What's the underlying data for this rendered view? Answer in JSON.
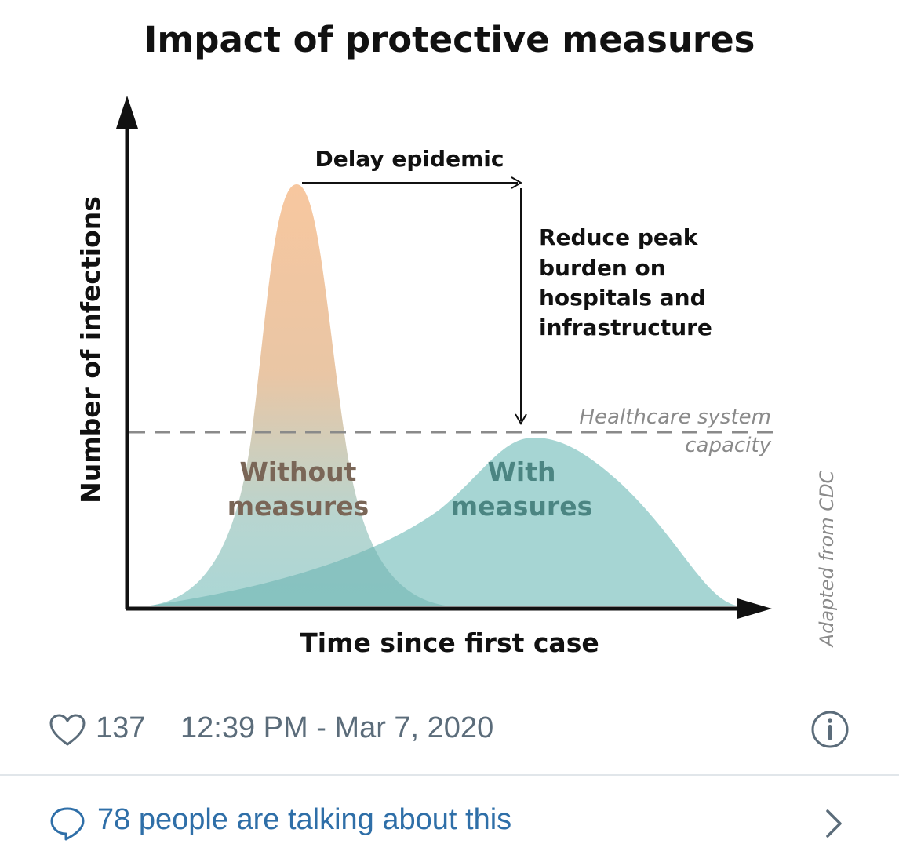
{
  "figure": {
    "title": "Impact of protective measures",
    "y_axis_label": "Number of infections",
    "x_axis_label": "Time since first case",
    "annotations": {
      "delay": "Delay epidemic",
      "reduce_lines": [
        "Reduce peak",
        "burden on",
        "hospitals and",
        "infrastructure"
      ],
      "capacity_lines": [
        "Healthcare system",
        "capacity"
      ],
      "without_lines": [
        "Without",
        "measures"
      ],
      "with_lines": [
        "With",
        "measures"
      ]
    },
    "credit": "Adapted from CDC",
    "colors": {
      "without_top": "#f7c49a",
      "without_bottom": "#a6d5d3",
      "with_fill": "#a6d5d3",
      "overlap": "#7cbcb9",
      "without_label": "#7a6657",
      "with_label": "#4b8582",
      "capacity_line": "#8a8a8a"
    }
  },
  "tweet": {
    "like_count": "137",
    "timestamp": "12:39 PM - Mar 7, 2020",
    "talking_text": "78 people are talking about this",
    "icons": {
      "like": "heart-icon",
      "info": "info-icon",
      "talk": "speech-bubble-icon",
      "more": "chevron-right-icon"
    },
    "colors": {
      "meta_text": "#5b6c7a",
      "link": "#2f6fa8",
      "divider": "#e1e6ea"
    }
  }
}
